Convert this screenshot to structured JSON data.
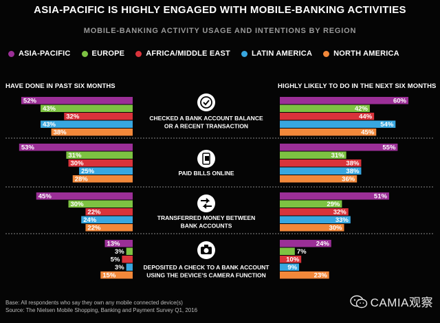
{
  "title": "ASIA-PACIFIC IS HIGHLY ENGAGED WITH MOBILE-BANKING ACTIVITIES",
  "subtitle": "MOBILE-BANKING ACTIVITY USAGE AND INTENTIONS BY REGION",
  "legend": [
    {
      "label": "ASIA-PACIFIC",
      "color": "#9b2f97"
    },
    {
      "label": "EUROPE",
      "color": "#7dc242"
    },
    {
      "label": "AFRICA/MIDDLE EAST",
      "color": "#d9333b"
    },
    {
      "label": "LATIN AMERICA",
      "color": "#38a7e0"
    },
    {
      "label": "NORTH AMERICA",
      "color": "#f2883a"
    }
  ],
  "panels": {
    "left_title": "HAVE DONE IN PAST SIX MONTHS",
    "right_title": "HIGHLY LIKELY TO DO IN THE NEXT SIX MONTHS"
  },
  "chart_data": {
    "type": "bar",
    "series_names": [
      "ASIA-PACIFIC",
      "EUROPE",
      "AFRICA/MIDDLE EAST",
      "LATIN AMERICA",
      "NORTH AMERICA"
    ],
    "categories": [
      {
        "label_lines": [
          "CHECKED A BANK ACCOUNT BALANCE",
          "OR A RECENT TRANSACTION"
        ],
        "icon": "checkmark-icon",
        "past": [
          52,
          43,
          32,
          43,
          38
        ],
        "next": [
          60,
          42,
          44,
          54,
          45
        ]
      },
      {
        "label_lines": [
          "PAID BILLS ONLINE"
        ],
        "icon": "phone-bill-icon",
        "past": [
          53,
          31,
          30,
          25,
          28
        ],
        "next": [
          55,
          31,
          38,
          38,
          36
        ]
      },
      {
        "label_lines": [
          "TRANSFERRED MONEY BETWEEN",
          "BANK ACCOUNTS"
        ],
        "icon": "transfer-arrows-icon",
        "past": [
          45,
          30,
          22,
          24,
          22
        ],
        "next": [
          51,
          29,
          32,
          33,
          30
        ]
      },
      {
        "label_lines": [
          "DEPOSITED A CHECK TO A BANK ACCOUNT",
          "USING THE DEVICE'S CAMERA FUNCTION"
        ],
        "icon": "camera-icon",
        "past": [
          13,
          3,
          5,
          3,
          15
        ],
        "next": [
          24,
          7,
          10,
          9,
          23
        ]
      }
    ],
    "value_suffix": "%",
    "xlim": [
      0,
      60
    ]
  },
  "footnotes": [
    "Base: All respondents who say they own any mobile connected device(s)",
    "Source: The Nielsen Mobile Shopping, Banking and Payment Survey Q1, 2016"
  ],
  "brand": "CAMIA观察"
}
